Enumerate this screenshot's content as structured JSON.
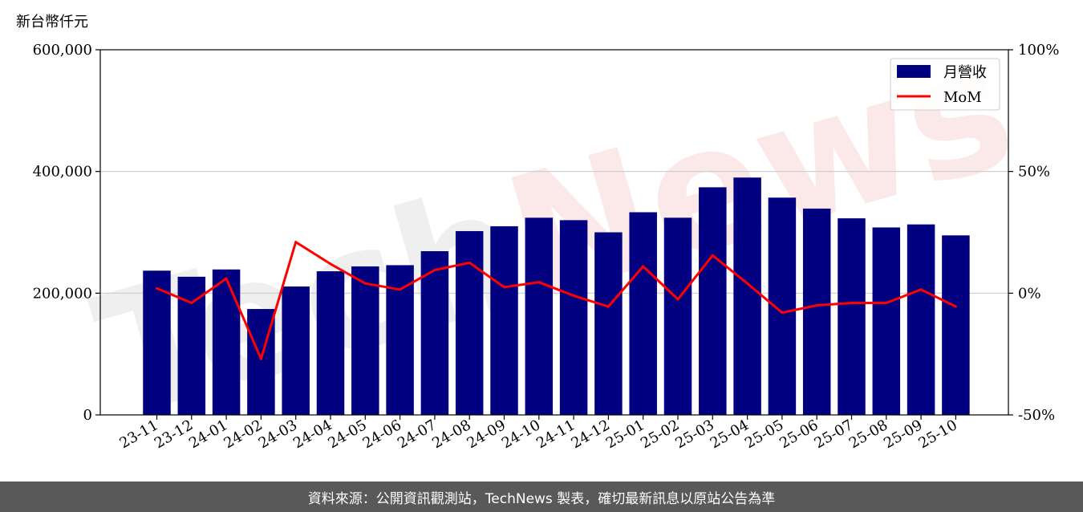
{
  "watermark": {
    "part1": "Tech",
    "part2": "News"
  },
  "footer": {
    "text": "資料來源：公開資訊觀測站，TechNews 製表，確切最新訊息以原站公告為準"
  },
  "colors": {
    "bar": "#000080",
    "line": "#ff0000",
    "grid": "#cccccc"
  },
  "chart_data": {
    "type": "bar",
    "ylabel": "新台幣仟元",
    "categories": [
      "23-11",
      "23-12",
      "24-01",
      "24-02",
      "24-03",
      "24-04",
      "24-05",
      "24-06",
      "24-07",
      "24-08",
      "24-09",
      "24-10",
      "24-11",
      "24-12",
      "25-01",
      "25-02",
      "25-03",
      "25-04",
      "25-05",
      "25-06",
      "25-07",
      "25-08",
      "25-09",
      "25-10"
    ],
    "ylim": [
      0,
      600000
    ],
    "y_ticks": [
      "0",
      "200,000",
      "400,000",
      "600,000"
    ],
    "y_tick_values": [
      0,
      200000,
      400000,
      600000
    ],
    "y2lim": [
      -50,
      100
    ],
    "y2_ticks": [
      "-50%",
      "0%",
      "50%",
      "100%"
    ],
    "y2_tick_values": [
      -50,
      0,
      50,
      100
    ],
    "grid": "horizontal",
    "legend": "top-right",
    "series": [
      {
        "name": "月營收",
        "type": "bar",
        "axis": "left",
        "values": [
          237000,
          227000,
          239000,
          174000,
          211000,
          236000,
          244000,
          246000,
          269000,
          302000,
          310000,
          324000,
          320000,
          300000,
          333000,
          324000,
          374000,
          390000,
          357000,
          339000,
          323000,
          308000,
          313000,
          295000
        ]
      },
      {
        "name": "MoM",
        "type": "line",
        "axis": "right",
        "values": [
          2,
          -4,
          6,
          -27,
          21,
          12,
          4,
          1.5,
          9.5,
          12.5,
          2.5,
          4.5,
          -1,
          -5.5,
          11,
          -2.5,
          15.5,
          4,
          -8,
          -5,
          -4,
          -4,
          1.5,
          -5.5
        ]
      }
    ]
  }
}
